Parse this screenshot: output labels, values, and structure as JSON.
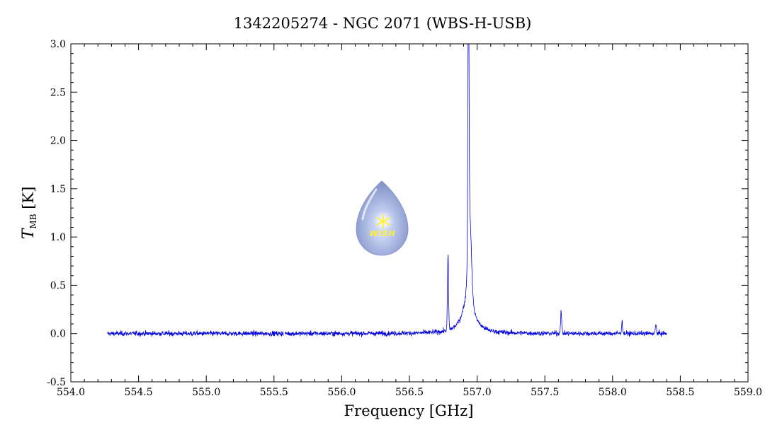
{
  "chart_data": {
    "type": "line",
    "title": "1342205274 - NGC 2071 (WBS-H-USB)",
    "xlabel": "Frequency [GHz]",
    "ylabel_main": "T",
    "ylabel_sub": "MB",
    "ylabel_unit": " [K]",
    "xlim": [
      554.0,
      559.0
    ],
    "ylim": [
      -0.5,
      3.0
    ],
    "x_ticks": [
      "554.0",
      "554.5",
      "555.0",
      "555.5",
      "556.0",
      "556.5",
      "557.0",
      "557.5",
      "558.0",
      "558.5",
      "559.0"
    ],
    "y_ticks": [
      "-0.5",
      "0.0",
      "0.5",
      "1.0",
      "1.5",
      "2.0",
      "2.5",
      "3.0"
    ],
    "grid": false,
    "series": [
      {
        "color": "#0000dd",
        "x_range": [
          554.27,
          558.4
        ],
        "baseline": 0.0,
        "noise_rms": 0.018,
        "gaps": [
          [
            555.57,
            555.58
          ]
        ],
        "features": [
          {
            "center": 556.936,
            "peak": 2.85,
            "type": "narrow-emission"
          },
          {
            "center": 556.945,
            "peak": 0.82,
            "type": "emission"
          },
          {
            "center": 556.936,
            "peak": 0.45,
            "type": "broad-wing"
          },
          {
            "center": 556.785,
            "peak": 0.78,
            "type": "narrow-emission"
          },
          {
            "center": 556.94,
            "peak": -0.1,
            "type": "absorption"
          },
          {
            "center": 557.62,
            "peak": 0.24,
            "type": "narrow-emission"
          },
          {
            "center": 558.07,
            "peak": 0.12,
            "type": "narrow-emission"
          },
          {
            "center": 558.32,
            "peak": 0.09,
            "type": "narrow-emission"
          }
        ]
      }
    ]
  },
  "logo": {
    "text": "WISH",
    "icon": "star-drop-icon"
  }
}
